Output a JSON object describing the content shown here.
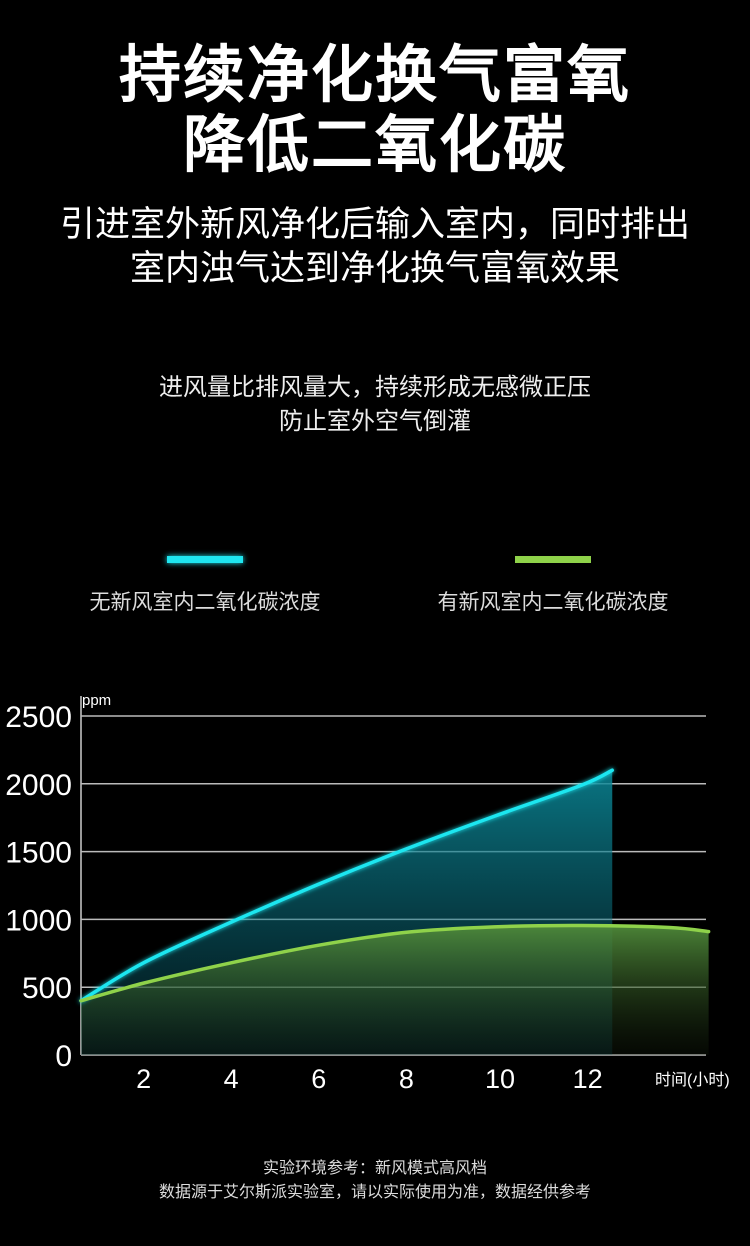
{
  "header": {
    "title_line1": "持续净化换气富氧",
    "title_line2": "降低二氧化碳",
    "subtitle_line1": "引进室外新风净化后输入室内，同时排出",
    "subtitle_line2": "室内浊气达到净化换气富氧效果",
    "note_line1": "进风量比排风量大，持续形成无感微正压",
    "note_line2": "防止室外空气倒灌"
  },
  "legend": [
    {
      "label": "无新风室内二氧化碳浓度",
      "color": "#1fe6f0"
    },
    {
      "label": "有新风室内二氧化碳浓度",
      "color": "#8fd24a"
    }
  ],
  "chart_data": {
    "type": "area",
    "ylabel": "ppm",
    "xlabel": "时间(小时)",
    "ylim": [
      0,
      2500
    ],
    "xlim": [
      0.6,
      14.9
    ],
    "y_ticks": [
      "0",
      "500",
      "1000",
      "1500",
      "2000",
      "2500"
    ],
    "x_ticks": [
      "2",
      "4",
      "6",
      "8",
      "10",
      "12"
    ],
    "grid": true,
    "legend_position": "top",
    "series": [
      {
        "name": "无新风室内二氧化碳浓度",
        "color": "#1fe6f0",
        "x": [
          0.6,
          2,
          4,
          6,
          8,
          10,
          12,
          12.7
        ],
        "values": [
          400,
          680,
          980,
          1260,
          1520,
          1760,
          1990,
          2100
        ]
      },
      {
        "name": "有新风室内二氧化碳浓度",
        "color": "#8fd24a",
        "x": [
          0.6,
          2,
          4,
          6,
          8,
          10,
          12,
          14,
          14.9
        ],
        "values": [
          400,
          530,
          680,
          810,
          905,
          945,
          955,
          940,
          910
        ]
      }
    ]
  },
  "footer": {
    "line1": "实验环境参考：新风模式高风档",
    "line2": "数据源于艾尔斯派实验室，请以实际使用为准，数据经供参考"
  }
}
